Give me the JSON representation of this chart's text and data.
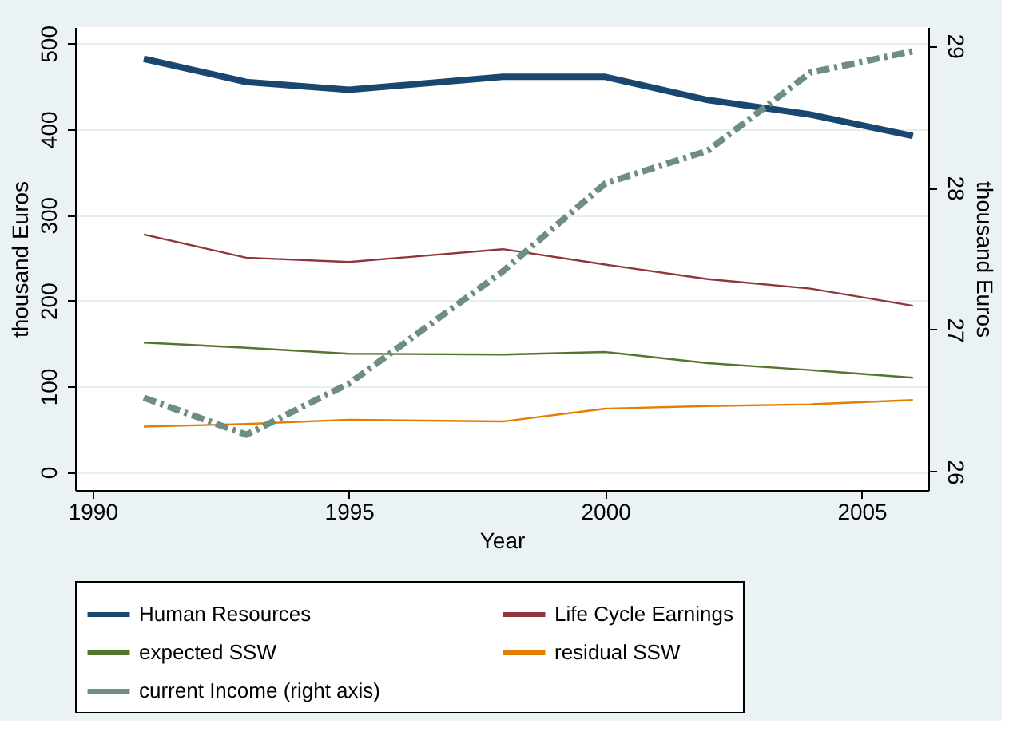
{
  "chart_data": {
    "type": "line",
    "xlabel": "Year",
    "ylabel": "thousand Euros",
    "y2label": "thousand Euros",
    "x": [
      1991,
      1993,
      1995,
      1998,
      2000,
      2002,
      2004,
      2006
    ],
    "xlim": [
      1989.66,
      2006.3
    ],
    "xticks": [
      1990,
      1995,
      2000,
      2005
    ],
    "ylim": [
      -21,
      519
    ],
    "yticks": [
      0,
      100,
      200,
      300,
      400,
      500
    ],
    "y2lim": [
      25.87,
      29.13
    ],
    "y2ticks": [
      26,
      27,
      28,
      29
    ],
    "grid": "y",
    "legend": "bottom",
    "marker": "none",
    "series": [
      {
        "name": "Human Resources",
        "color": "#1a476f",
        "values": [
          482,
          455,
          446,
          461,
          461,
          434,
          417,
          392
        ],
        "line_style": "solid"
      },
      {
        "name": "Life Cycle Earnings",
        "color": "#90353b",
        "values": [
          277,
          250,
          245,
          260,
          242,
          225,
          214,
          194
        ],
        "line_style": "solid"
      },
      {
        "name": "expected SSW",
        "color": "#55752f",
        "values": [
          151,
          145,
          138,
          137,
          140,
          127,
          119,
          110
        ],
        "line_style": "solid"
      },
      {
        "name": "residual SSW",
        "color": "#e37e00",
        "values": [
          53,
          56,
          61,
          59,
          74,
          77,
          79,
          84
        ],
        "line_style": "solid"
      },
      {
        "name": "current Income (right axis)",
        "color": "#6e8e84",
        "values": [
          26.52,
          26.26,
          26.62,
          27.41,
          28.03,
          28.26,
          28.81,
          28.96
        ],
        "axis": "y2",
        "line_style": "dashed"
      }
    ]
  }
}
